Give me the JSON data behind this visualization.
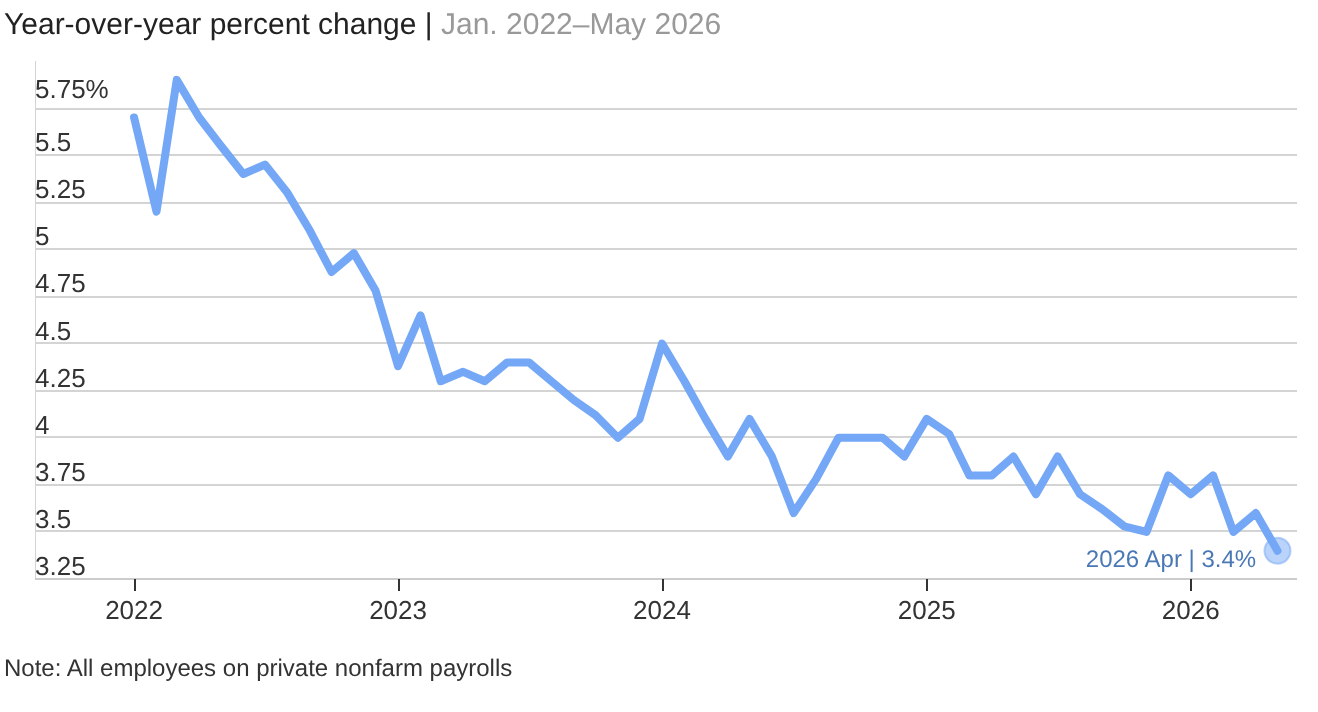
{
  "chart_data": {
    "type": "line",
    "title": "Year-over-year percent change |",
    "subtitle": "Jan. 2022–May 2026",
    "x": [
      "2022-01",
      "2022-02",
      "2022-03",
      "2022-04",
      "2022-05",
      "2022-06",
      "2022-07",
      "2022-08",
      "2022-09",
      "2022-10",
      "2022-11",
      "2022-12",
      "2023-01",
      "2023-02",
      "2023-03",
      "2023-04",
      "2023-05",
      "2023-06",
      "2023-07",
      "2023-08",
      "2023-09",
      "2023-10",
      "2023-11",
      "2023-12",
      "2024-01",
      "2024-02",
      "2024-03",
      "2024-04",
      "2024-05",
      "2024-06",
      "2024-07",
      "2024-08",
      "2024-09",
      "2024-10",
      "2024-11",
      "2024-12",
      "2025-01",
      "2025-02",
      "2025-03",
      "2025-04",
      "2025-05",
      "2025-06",
      "2025-07",
      "2025-08",
      "2025-09",
      "2025-10",
      "2025-11",
      "2025-12",
      "2026-01",
      "2026-02",
      "2026-03",
      "2026-04",
      "2026-05"
    ],
    "series": [
      {
        "color": "#74a7f5",
        "values": [
          5.7,
          5.2,
          5.9,
          5.7,
          5.55,
          5.4,
          5.45,
          5.3,
          5.1,
          4.88,
          4.98,
          4.78,
          4.38,
          4.65,
          4.3,
          4.35,
          4.3,
          4.4,
          4.4,
          4.3,
          4.2,
          4.12,
          4.0,
          4.1,
          4.5,
          4.3,
          4.1,
          3.9,
          4.1,
          3.9,
          3.6,
          3.78,
          4.0,
          4.0,
          4.0,
          3.9,
          4.1,
          4.02,
          3.8,
          3.8,
          3.9,
          3.7,
          3.9,
          3.7,
          3.62,
          3.53,
          3.5,
          3.8,
          3.7,
          3.8,
          3.5,
          3.6,
          3.4
        ]
      }
    ],
    "xlim": [
      "2021-08-17",
      "2026-05-28"
    ],
    "xticks": [
      {
        "value": "2022-01",
        "label": "2022"
      },
      {
        "value": "2023-01",
        "label": "2023"
      },
      {
        "value": "2024-01",
        "label": "2024"
      },
      {
        "value": "2025-01",
        "label": "2025"
      },
      {
        "value": "2026-01",
        "label": "2026"
      }
    ],
    "ylim": [
      3.25,
      6.0
    ],
    "yticks": [
      3.25,
      3.5,
      3.75,
      4,
      4.25,
      4.5,
      4.75,
      5,
      5.25,
      5.5,
      {
        "value": 5.75,
        "label": "5.75%"
      }
    ],
    "grid": "y",
    "line_style": "solid",
    "annotations": [
      {
        "text": "2026 Apr | 3.4%",
        "x": "2026-05",
        "y": 3.4
      },
      "Note: All employees on private nonfarm payrolls"
    ]
  }
}
